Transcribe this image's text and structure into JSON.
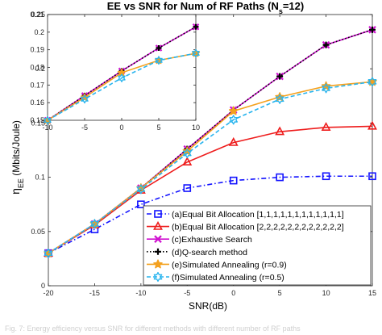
{
  "chart_data": {
    "type": "line",
    "title": "EE vs SNR for Num of RF Paths (N",
    "title_sub": "s",
    "title_suffix": "=12)",
    "xlabel": "SNR(dB)",
    "ylabel_main": "η",
    "ylabel_sub": "EE",
    "ylabel_unit": " (Mbits/Joule)",
    "x": [
      -20,
      -15,
      -10,
      -5,
      0,
      5,
      10,
      15
    ],
    "xlim": [
      -20,
      15
    ],
    "ylim": [
      0,
      0.25
    ],
    "xticks": [
      "-20",
      "-15",
      "-10",
      "-5",
      "0",
      "5",
      "10",
      "15"
    ],
    "yticks": [
      "0",
      "0.05",
      "0.1",
      "0.15",
      "0.2",
      "0.25"
    ],
    "grid": false,
    "legend_position": "lower-right",
    "series": [
      {
        "name": "(a)Equal Bit Allocation [1,1,1,1,1,1,1,1,1,1,1,1]",
        "values": [
          0.03,
          0.052,
          0.075,
          0.09,
          0.097,
          0.1,
          0.101,
          0.101
        ],
        "color": "#1414ff",
        "dash": "dashdot",
        "marker": "square"
      },
      {
        "name": "(b)Equal Bit Allocation [2,2,2,2,2,2,2,2,2,2,2,2]",
        "values": [
          0.03,
          0.056,
          0.088,
          0.114,
          0.132,
          0.142,
          0.146,
          0.147
        ],
        "color": "#ee1c1c",
        "dash": "solid",
        "marker": "triangle"
      },
      {
        "name": "(c)Exhaustive Search",
        "values": [
          0.03,
          0.057,
          0.09,
          0.126,
          0.162,
          0.193,
          0.222,
          0.236
        ],
        "color": "#d010d0",
        "dash": "solid",
        "marker": "x"
      },
      {
        "name": "(d)Q-search method",
        "values": [
          0.03,
          0.057,
          0.09,
          0.126,
          0.162,
          0.193,
          0.222,
          0.236
        ],
        "color": "#000000",
        "dash": "dotted",
        "marker": "plus"
      },
      {
        "name": "(e)Simulated Annealing (r=0.9)",
        "values": [
          0.03,
          0.057,
          0.09,
          0.124,
          0.161,
          0.174,
          0.184,
          0.188
        ],
        "color": "#f4a11f",
        "dash": "solid",
        "marker": "star5"
      },
      {
        "name": "(f)Simulated Annealing (r=0.5)",
        "values": [
          0.03,
          0.057,
          0.089,
          0.122,
          0.153,
          0.172,
          0.182,
          0.188
        ],
        "color": "#27b4ee",
        "dash": "dashed",
        "marker": "star6"
      }
    ],
    "inset": {
      "x": [
        -10,
        -5,
        0,
        5,
        10
      ],
      "xlim": [
        -10,
        10
      ],
      "ylim": [
        0.15,
        0.21
      ],
      "xticks": [
        "-10",
        "-5",
        "0",
        "5",
        "10"
      ],
      "yticks": [
        "0.15",
        "0.16",
        "0.17",
        "0.18",
        "0.19",
        "0.2",
        "0.21"
      ],
      "series": [
        {
          "ref": 2,
          "values": [
            0.15,
            0.164,
            0.178,
            0.191,
            0.203
          ]
        },
        {
          "ref": 3,
          "values": [
            0.15,
            0.164,
            0.178,
            0.191,
            0.203
          ]
        },
        {
          "ref": 4,
          "values": [
            0.15,
            0.163,
            0.177,
            0.184,
            0.188
          ]
        },
        {
          "ref": 5,
          "values": [
            0.15,
            0.162,
            0.174,
            0.184,
            0.188
          ]
        }
      ]
    }
  },
  "caption": "Fig. 7: Energy efficiency versus SNR for different methods with different number of RF paths"
}
